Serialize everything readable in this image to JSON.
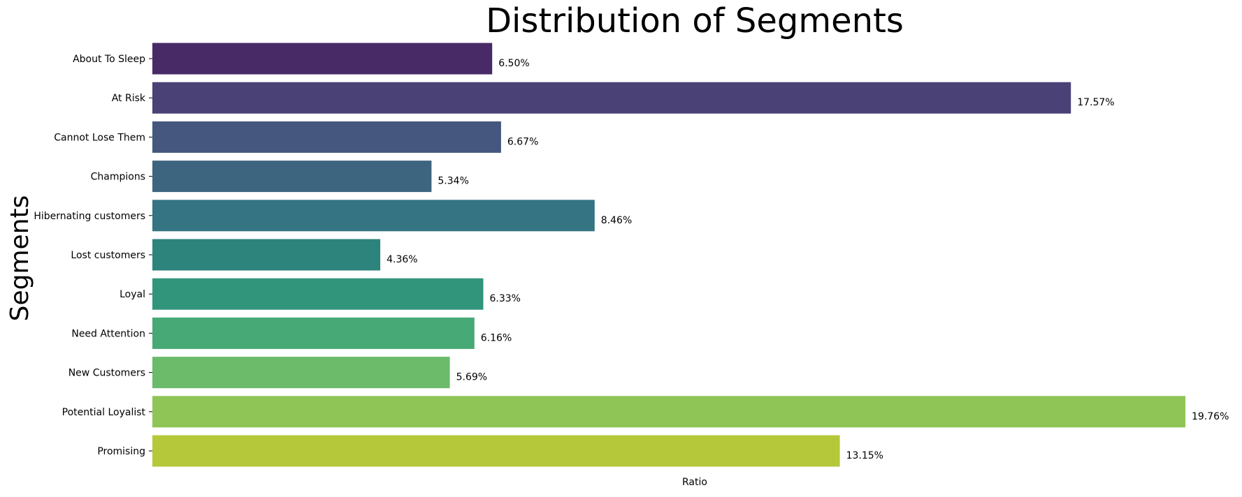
{
  "chart_data": {
    "type": "bar",
    "orientation": "horizontal",
    "title": "Distribution of Segments",
    "xlabel": "Ratio",
    "ylabel": "Segments",
    "categories": [
      "About To Sleep",
      "At Risk",
      "Cannot Lose Them",
      "Champions",
      "Hibernating customers",
      "Lost customers",
      "Loyal",
      "Need Attention",
      "New Customers",
      "Potential Loyalist",
      "Promising"
    ],
    "values": [
      6.5,
      17.57,
      6.67,
      5.34,
      8.46,
      4.36,
      6.33,
      6.16,
      5.69,
      19.76,
      13.15
    ],
    "data_labels": [
      "6.50%",
      "17.57%",
      "6.67%",
      "5.34%",
      "8.46%",
      "4.36%",
      "6.33%",
      "6.16%",
      "5.69%",
      "19.76%",
      "13.15%"
    ],
    "colors": [
      "#482a67",
      "#4a4277",
      "#45577e",
      "#3e6580",
      "#357482",
      "#2d847d",
      "#31957c",
      "#47a975",
      "#6bbb6a",
      "#8ec556",
      "#b5c83a"
    ],
    "xlim": [
      0,
      19.76
    ],
    "grid": false,
    "legend": "none"
  }
}
